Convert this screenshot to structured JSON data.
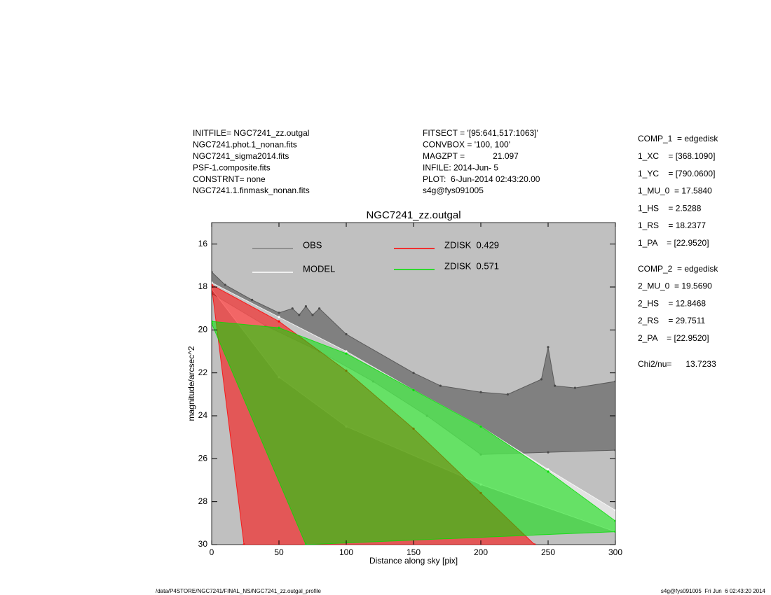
{
  "header": {
    "left": [
      "INITFILE= NGC7241_zz.outgal",
      "NGC7241.phot.1_nonan.fits",
      "NGC7241_sigma2014.fits",
      "PSF-1.composite.fits",
      "CONSTRNT= none",
      "NGC7241.1.finmask_nonan.fits"
    ],
    "middle": [
      "FITSECT = '[95:641,517:1063]'",
      "CONVBOX = '100, 100'",
      "MAGZPT =            21.097",
      "INFILE: 2014-Jun- 5",
      "PLOT:  6-Jun-2014 02:43:20.00",
      "s4g@fys091005"
    ]
  },
  "panel": {
    "groups": [
      [
        "COMP_1  = edgedisk",
        "1_XC    = [368.1090]",
        "1_YC    = [790.0600]",
        "1_MU_0  = 17.5840",
        "1_HS    = 2.5288",
        "1_RS    = 18.2377",
        "1_PA    = [22.9520]"
      ],
      [
        "COMP_2  = edgedisk",
        "2_MU_0  = 19.5690",
        "2_HS    = 12.8468",
        "2_RS    = 29.7511",
        "2_PA    = [22.9520]"
      ],
      [
        "Chi2/nu=      13.7233"
      ]
    ]
  },
  "footer": {
    "left": "/data/P4STORE/NGC7241/FINAL_NS/NGC7241_zz.outgal_profile",
    "right": "s4g@fys091005  Fri Jun  6 02:43:20 2014"
  },
  "chart_data": {
    "type": "scatter",
    "title": "NGC7241_zz.outgal",
    "x_label": "Distance along sky [pix]",
    "y_label": "magnitude/arcsec^2",
    "xlim": [
      0,
      300
    ],
    "ylim": [
      15,
      30
    ],
    "y_inverted": true,
    "xticks": [
      0,
      50,
      100,
      150,
      200,
      250,
      300
    ],
    "yticks": [
      16,
      18,
      20,
      22,
      24,
      26,
      28,
      30
    ],
    "background": "#c0c0c0",
    "series": [
      {
        "name": "OBS",
        "color": "#808080",
        "fill": "#4a4a4a",
        "x": [
          0,
          10,
          30,
          50,
          60,
          65,
          70,
          75,
          80,
          100,
          150,
          170,
          200,
          220,
          245,
          250,
          255,
          270,
          300,
          300,
          250,
          200,
          160,
          120,
          80,
          40,
          0
        ],
        "values": [
          17.3,
          17.9,
          18.6,
          19.2,
          19.0,
          19.3,
          18.9,
          19.3,
          19.0,
          20.2,
          22.0,
          22.6,
          22.9,
          23.0,
          22.3,
          20.8,
          22.6,
          22.7,
          22.4,
          25.6,
          25.7,
          25.8,
          24.0,
          22.4,
          21.0,
          19.8,
          18.3
        ]
      },
      {
        "name": "MODEL",
        "color": "#ffffff",
        "fill": "#ffffff",
        "x": [
          0,
          50,
          100,
          150,
          200,
          250,
          300,
          300,
          200,
          100,
          50,
          0
        ],
        "values": [
          17.8,
          19.4,
          21.0,
          22.8,
          24.5,
          26.5,
          28.4,
          29.4,
          27.2,
          24.5,
          22.2,
          18.1
        ]
      },
      {
        "name": "ZDISK  0.429",
        "color": "#ff0000",
        "fill": "#ff0000",
        "x": [
          0,
          50,
          100,
          150,
          200,
          240,
          24,
          0
        ],
        "values": [
          17.9,
          19.6,
          21.9,
          24.6,
          27.6,
          30,
          30,
          18.0
        ]
      },
      {
        "name": "ZDISK  0.571",
        "color": "#00e000",
        "fill": "#00e000",
        "x": [
          0,
          50,
          100,
          150,
          200,
          250,
          300,
          300,
          70,
          0
        ],
        "values": [
          19.6,
          19.9,
          21.1,
          22.8,
          24.5,
          26.6,
          28.9,
          29.4,
          30,
          19.7
        ]
      }
    ]
  }
}
